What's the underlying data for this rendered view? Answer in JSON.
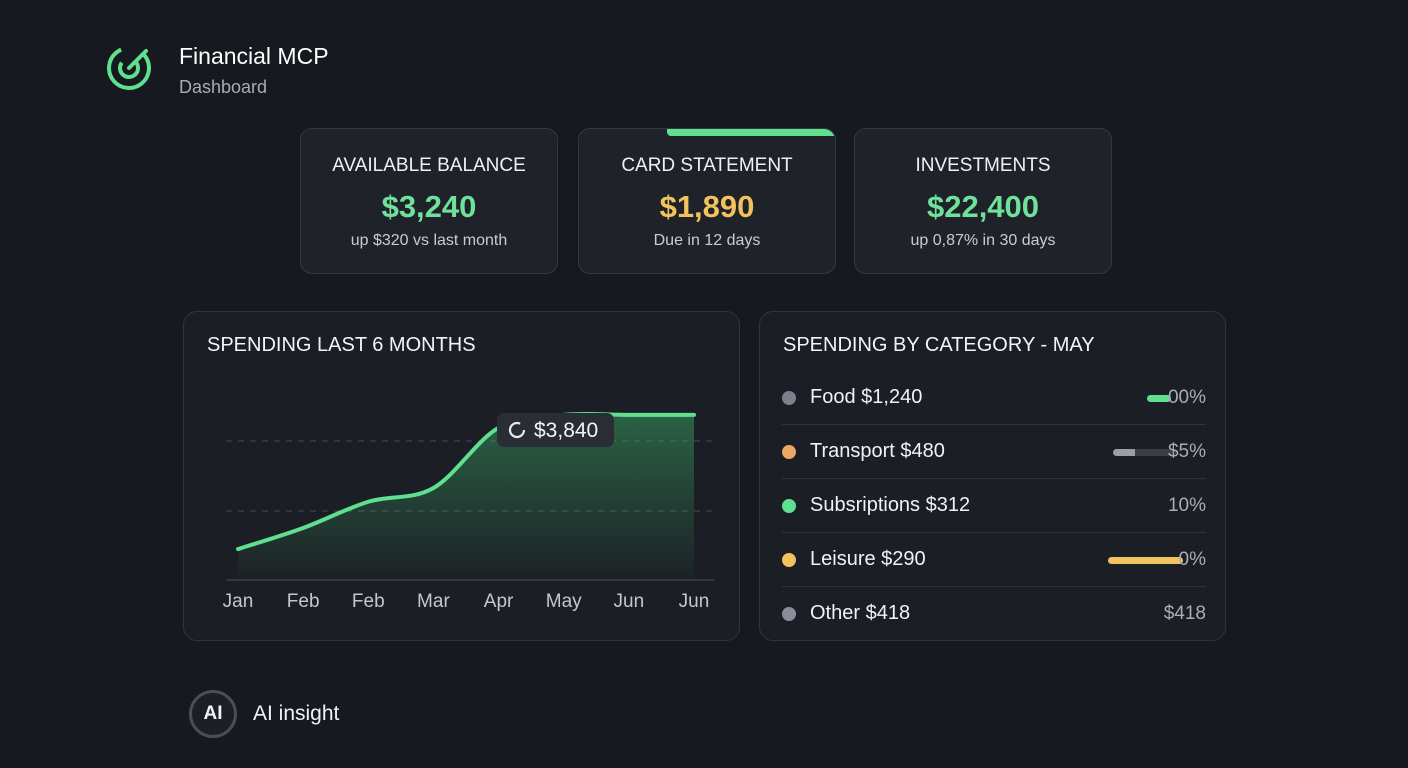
{
  "header": {
    "title": "Financial MCP",
    "subtitle": "Dashboard"
  },
  "cards": [
    {
      "label": "AVAILABLE BALANCE",
      "value": "$3,240",
      "note": "up $320 vs last month",
      "color": "#6ee29a"
    },
    {
      "label": "CARD STATEMENT",
      "value": "$1,890",
      "note": "Due in 12 days",
      "color": "#f2c25e"
    },
    {
      "label": "INVESTMENTS",
      "value": "$22,400",
      "note": "up 0,87% in 30 days",
      "color": "#6ee29a"
    }
  ],
  "spending_chart": {
    "type": "line",
    "title": "SPENDING LAST 6 MONTHS",
    "categories": [
      "Jan",
      "Feb",
      "Feb",
      "Mar",
      "Apr",
      "May",
      "Jun",
      "Jun"
    ],
    "values": [
      720,
      1210,
      1820,
      2140,
      3540,
      3840,
      3840,
      3840
    ],
    "ylim": [
      0,
      4000
    ],
    "color": "#5fe08f",
    "tooltip": "$3,840"
  },
  "category_panel": {
    "title": "SPENDING BY CATEGORY - MAY",
    "rows": [
      {
        "label": "Food $1,240",
        "share": "00%",
        "color": "#7d808b"
      },
      {
        "label": "Transport $480",
        "share": "$5%",
        "color": "#e9a866"
      },
      {
        "label": "Subsriptions $312",
        "share": "10%",
        "color": "#5fe08f"
      },
      {
        "label": "Leisure $290",
        "share": "0%",
        "color": "#f2c25e"
      },
      {
        "label": "Other $418",
        "share": "$418",
        "color": "#8a8d97"
      }
    ]
  },
  "insight": {
    "badge": "AI",
    "label": "AI insight"
  }
}
